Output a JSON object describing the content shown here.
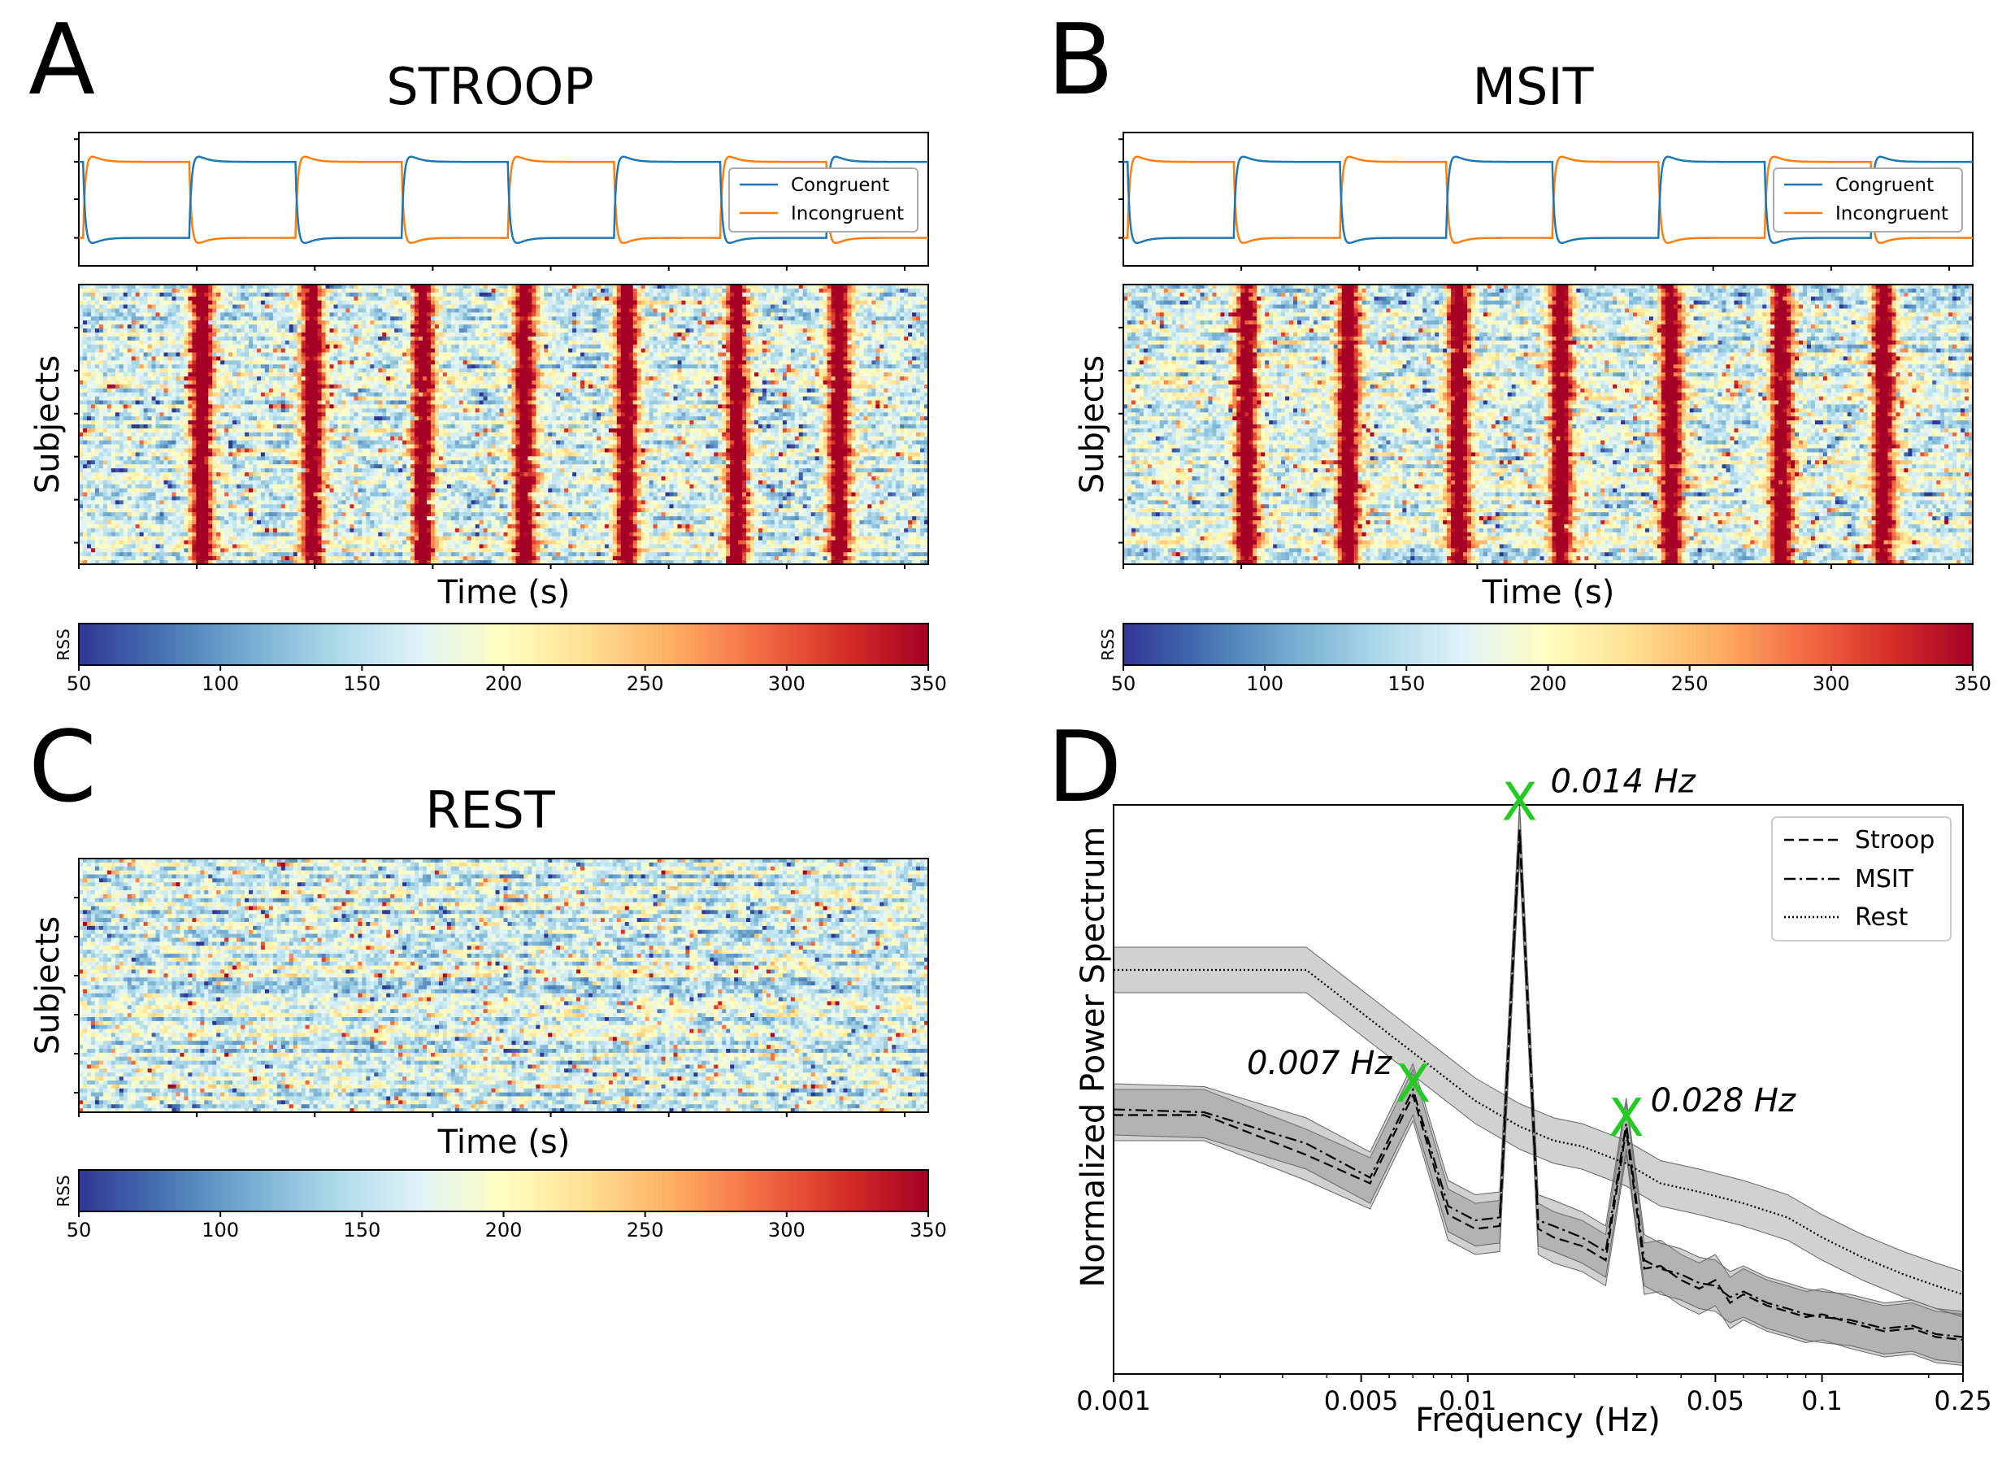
{
  "chart_data": [
    {
      "panel": "A",
      "type": "heatmap",
      "title": "STROOP",
      "regressors": {
        "type": "line",
        "legend": "right",
        "series": [
          {
            "name": "Congruent",
            "color": "#1f77b4",
            "phase": "second"
          },
          {
            "name": "Incongruent",
            "color": "#ff7f0e",
            "phase": "first"
          }
        ],
        "blocks": 8
      },
      "heatmap": {
        "ylabel": "Subjects",
        "xlabel": "Time (s)",
        "rows": 70,
        "cols": 210,
        "seed": 11,
        "bands": [
          0.14,
          0.27,
          0.4,
          0.52,
          0.64,
          0.77,
          0.89
        ]
      },
      "colorbar": {
        "label": "RSS",
        "min": 50,
        "max": 350,
        "ticks": [
          50,
          100,
          150,
          200,
          250,
          300,
          350
        ]
      }
    },
    {
      "panel": "B",
      "type": "heatmap",
      "title": "MSIT",
      "regressors": {
        "type": "line",
        "legend": "right",
        "series": [
          {
            "name": "Congruent",
            "color": "#1f77b4",
            "phase": "second"
          },
          {
            "name": "Incongruent",
            "color": "#ff7f0e",
            "phase": "first"
          }
        ],
        "blocks": 8
      },
      "heatmap": {
        "ylabel": "Subjects",
        "xlabel": "Time (s)",
        "rows": 70,
        "cols": 210,
        "seed": 23,
        "bands": [
          0.14,
          0.26,
          0.39,
          0.51,
          0.64,
          0.77,
          0.89
        ]
      },
      "colorbar": {
        "label": "RSS",
        "min": 50,
        "max": 350,
        "ticks": [
          50,
          100,
          150,
          200,
          250,
          300,
          350
        ]
      }
    },
    {
      "panel": "C",
      "type": "heatmap",
      "title": "REST",
      "heatmap": {
        "ylabel": "Subjects",
        "xlabel": "Time (s)",
        "rows": 64,
        "cols": 210,
        "seed": 37,
        "bands": []
      },
      "colorbar": {
        "label": "RSS",
        "min": 50,
        "max": 350,
        "ticks": [
          50,
          100,
          150,
          200,
          250,
          300,
          350
        ]
      }
    },
    {
      "panel": "D",
      "type": "line",
      "xlabel": "Frequency (Hz)",
      "ylabel": "Normalized Power Spectrum",
      "xscale": "log",
      "xlim": [
        0.001,
        0.25
      ],
      "ylim": [
        0,
        1.0
      ],
      "xticks": [
        {
          "value": 0.001,
          "label": "0.001"
        },
        {
          "value": 0.005,
          "label": "0.005"
        },
        {
          "value": 0.01,
          "label": "0.01"
        },
        {
          "value": 0.05,
          "label": "0.05"
        },
        {
          "value": 0.1,
          "label": "0.1"
        },
        {
          "value": 0.25,
          "label": "0.25"
        }
      ],
      "legend": "top-right",
      "series": [
        {
          "name": "Stroop",
          "style": "dashed",
          "x": [
            0.001,
            0.0018,
            0.0035,
            0.0053,
            0.007,
            0.0088,
            0.0105,
            0.0123,
            0.014,
            0.0158,
            0.0175,
            0.021,
            0.0245,
            0.028,
            0.0315,
            0.035,
            0.04,
            0.045,
            0.05,
            0.055,
            0.06,
            0.07,
            0.08,
            0.09,
            0.1,
            0.12,
            0.15,
            0.18,
            0.21,
            0.25
          ],
          "y": [
            0.455,
            0.455,
            0.385,
            0.335,
            0.49,
            0.28,
            0.255,
            0.26,
            0.95,
            0.255,
            0.24,
            0.225,
            0.2,
            0.43,
            0.185,
            0.19,
            0.165,
            0.15,
            0.165,
            0.125,
            0.14,
            0.12,
            0.11,
            0.1,
            0.105,
            0.09,
            0.075,
            0.08,
            0.065,
            0.06
          ]
        },
        {
          "name": "MSIT",
          "style": "dashdot",
          "x": [
            0.001,
            0.0018,
            0.0035,
            0.0053,
            0.007,
            0.0088,
            0.0105,
            0.0123,
            0.014,
            0.0158,
            0.0175,
            0.021,
            0.0245,
            0.028,
            0.0315,
            0.035,
            0.04,
            0.045,
            0.05,
            0.055,
            0.06,
            0.07,
            0.08,
            0.09,
            0.1,
            0.12,
            0.15,
            0.18,
            0.21,
            0.25
          ],
          "y": [
            0.465,
            0.46,
            0.405,
            0.345,
            0.5,
            0.295,
            0.27,
            0.275,
            0.96,
            0.27,
            0.26,
            0.24,
            0.215,
            0.44,
            0.2,
            0.185,
            0.175,
            0.16,
            0.155,
            0.135,
            0.145,
            0.125,
            0.115,
            0.105,
            0.1,
            0.095,
            0.08,
            0.085,
            0.07,
            0.065
          ]
        },
        {
          "name": "Rest",
          "style": "dotted",
          "x": [
            0.001,
            0.0035,
            0.007,
            0.0105,
            0.014,
            0.0175,
            0.021,
            0.028,
            0.035,
            0.045,
            0.06,
            0.08,
            0.1,
            0.13,
            0.17,
            0.21,
            0.25
          ],
          "y": [
            0.71,
            0.71,
            0.565,
            0.48,
            0.435,
            0.41,
            0.4,
            0.37,
            0.335,
            0.32,
            0.3,
            0.275,
            0.24,
            0.205,
            0.175,
            0.155,
            0.14
          ]
        }
      ],
      "annotations": [
        {
          "text": "0.014 Hz",
          "x": 0.014,
          "y": 0.985,
          "color": "#22cc22"
        },
        {
          "text": "0.007 Hz",
          "x": 0.007,
          "y": 0.49,
          "color": "#22cc22"
        },
        {
          "text": "0.028 Hz",
          "x": 0.028,
          "y": 0.43,
          "color": "#22cc22"
        }
      ],
      "peak_marker": "X"
    }
  ]
}
